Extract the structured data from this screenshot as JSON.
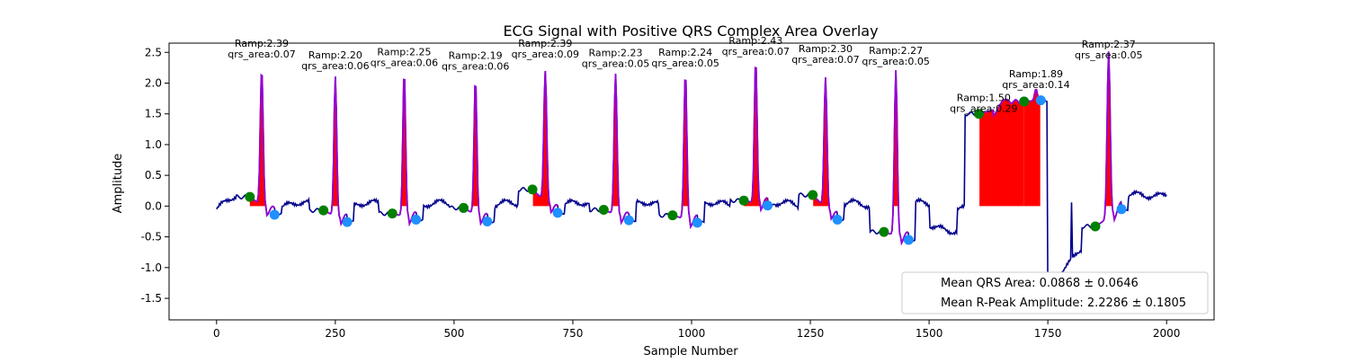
{
  "chart_data": {
    "type": "line",
    "title": "ECG Signal with Positive QRS Complex Area Overlay",
    "xlabel": "Sample Number",
    "ylabel": "Amplitude",
    "xlim": [
      -100,
      2100
    ],
    "ylim": [
      -1.85,
      2.65
    ],
    "xticks": [
      0,
      250,
      500,
      750,
      1000,
      1250,
      1500,
      1750,
      2000
    ],
    "yticks": [
      -1.5,
      -1.0,
      -0.5,
      0.0,
      0.5,
      1.0,
      1.5,
      2.0,
      2.5
    ],
    "grid": false,
    "colors": {
      "signal": "#00008b",
      "qrs_segment": "#9400d3",
      "qrs_area": "#ff0000",
      "onset_marker": "#008000",
      "offset_marker": "#1e90ff"
    },
    "beats": [
      {
        "onset": 70,
        "peak": 95,
        "offset": 122,
        "ramp": 2.39,
        "qrs_area": 0.07,
        "onset_amp": 0.15,
        "offset_amp": -0.14,
        "ramp_label": "Ramp:2.39",
        "area_label": "qrs_area:0.07"
      },
      {
        "onset": 225,
        "peak": 250,
        "offset": 275,
        "ramp": 2.2,
        "qrs_area": 0.06,
        "onset_amp": -0.07,
        "offset_amp": -0.26,
        "ramp_label": "Ramp:2.20",
        "area_label": "qrs_area:0.06"
      },
      {
        "onset": 370,
        "peak": 395,
        "offset": 420,
        "ramp": 2.25,
        "qrs_area": 0.06,
        "onset_amp": -0.12,
        "offset_amp": -0.22,
        "ramp_label": "Ramp:2.25",
        "area_label": "qrs_area:0.06"
      },
      {
        "onset": 520,
        "peak": 545,
        "offset": 570,
        "ramp": 2.19,
        "qrs_area": 0.06,
        "onset_amp": -0.03,
        "offset_amp": -0.25,
        "ramp_label": "Ramp:2.19",
        "area_label": "qrs_area:0.06"
      },
      {
        "onset": 665,
        "peak": 692,
        "offset": 718,
        "ramp": 2.39,
        "qrs_area": 0.09,
        "onset_amp": 0.27,
        "offset_amp": -0.11,
        "ramp_label": "Ramp:2.39",
        "area_label": "qrs_area:0.09"
      },
      {
        "onset": 815,
        "peak": 840,
        "offset": 868,
        "ramp": 2.23,
        "qrs_area": 0.05,
        "onset_amp": -0.06,
        "offset_amp": -0.23,
        "ramp_label": "Ramp:2.23",
        "area_label": "qrs_area:0.05"
      },
      {
        "onset": 960,
        "peak": 987,
        "offset": 1012,
        "ramp": 2.24,
        "qrs_area": 0.05,
        "onset_amp": -0.15,
        "offset_amp": -0.27,
        "ramp_label": "Ramp:2.24",
        "area_label": "qrs_area:0.05"
      },
      {
        "onset": 1110,
        "peak": 1135,
        "offset": 1160,
        "ramp": 2.43,
        "qrs_area": 0.07,
        "onset_amp": 0.09,
        "offset_amp": 0.01,
        "ramp_label": "Ramp:2.43",
        "area_label": "qrs_area:0.07"
      },
      {
        "onset": 1255,
        "peak": 1282,
        "offset": 1307,
        "ramp": 2.3,
        "qrs_area": 0.07,
        "onset_amp": 0.18,
        "offset_amp": -0.22,
        "ramp_label": "Ramp:2.30",
        "area_label": "qrs_area:0.07"
      },
      {
        "onset": 1405,
        "peak": 1430,
        "offset": 1457,
        "ramp": 2.27,
        "qrs_area": 0.05,
        "onset_amp": -0.42,
        "offset_amp": -0.55,
        "ramp_label": "Ramp:2.27",
        "area_label": "qrs_area:0.05"
      },
      {
        "onset": 1605,
        "peak": 1615,
        "offset": 1700,
        "ramp": 1.5,
        "qrs_area": 0.29,
        "onset_amp": 1.5,
        "offset_amp": 1.7,
        "ramp_label": "Ramp:1.50",
        "area_label": "qrs_area:0.29"
      },
      {
        "onset": 1700,
        "peak": 1725,
        "offset": 1735,
        "ramp": 1.89,
        "qrs_area": 0.14,
        "onset_amp": 1.7,
        "offset_amp": 1.72,
        "ramp_label": "Ramp:1.89",
        "area_label": "qrs_area:0.14"
      },
      {
        "onset": 1850,
        "peak": 1878,
        "offset": 1905,
        "ramp": 2.37,
        "qrs_area": 0.05,
        "onset_amp": -0.33,
        "offset_amp": -0.05,
        "ramp_label": "Ramp:2.37",
        "area_label": "qrs_area:0.05"
      }
    ],
    "legend": {
      "placement": "lower-right",
      "entries": [
        "Mean QRS Area: 0.0868 ± 0.0646",
        "Mean R-Peak Amplitude: 2.2286 ± 0.1805"
      ]
    }
  }
}
